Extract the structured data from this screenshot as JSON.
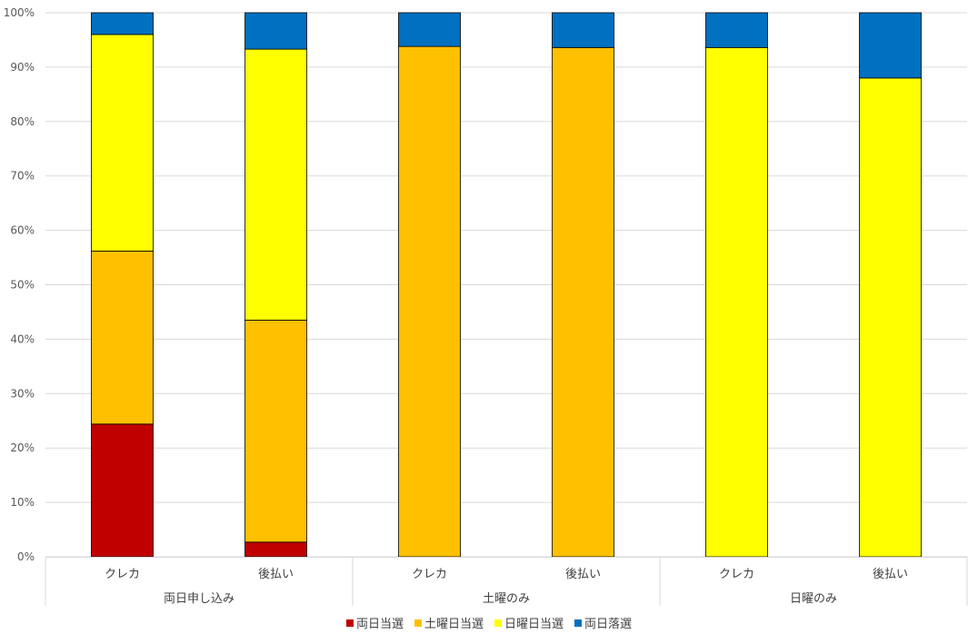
{
  "chart_data": {
    "type": "bar",
    "stacked": true,
    "percent": true,
    "yticks": [
      "0%",
      "10%",
      "20%",
      "30%",
      "40%",
      "50%",
      "60%",
      "70%",
      "80%",
      "90%",
      "100%"
    ],
    "ylim": [
      0,
      100
    ],
    "grid": true,
    "legend_position": "bottom",
    "groups": [
      {
        "label": "両日申し込み",
        "categories": [
          "クレカ",
          "後払い"
        ]
      },
      {
        "label": "土曜のみ",
        "categories": [
          "クレカ",
          "後払い"
        ]
      },
      {
        "label": "日曜のみ",
        "categories": [
          "クレカ",
          "後払い"
        ]
      }
    ],
    "categories": [
      "クレカ",
      "後払い",
      "クレカ",
      "後払い",
      "クレカ",
      "後払い"
    ],
    "series": [
      {
        "name": "両日当選",
        "color": "#C00000",
        "values": [
          24.4,
          2.7,
          0,
          0,
          0,
          0
        ]
      },
      {
        "name": "土曜日当選",
        "color": "#FFC000",
        "values": [
          31.8,
          40.8,
          93.8,
          93.6,
          0,
          0
        ]
      },
      {
        "name": "日曜日当選",
        "color": "#FFFF00",
        "values": [
          39.8,
          49.8,
          0,
          0,
          93.6,
          88.0
        ]
      },
      {
        "name": "両日落選",
        "color": "#0070C0",
        "values": [
          4.0,
          6.7,
          6.2,
          6.4,
          6.4,
          12.0
        ]
      }
    ]
  }
}
